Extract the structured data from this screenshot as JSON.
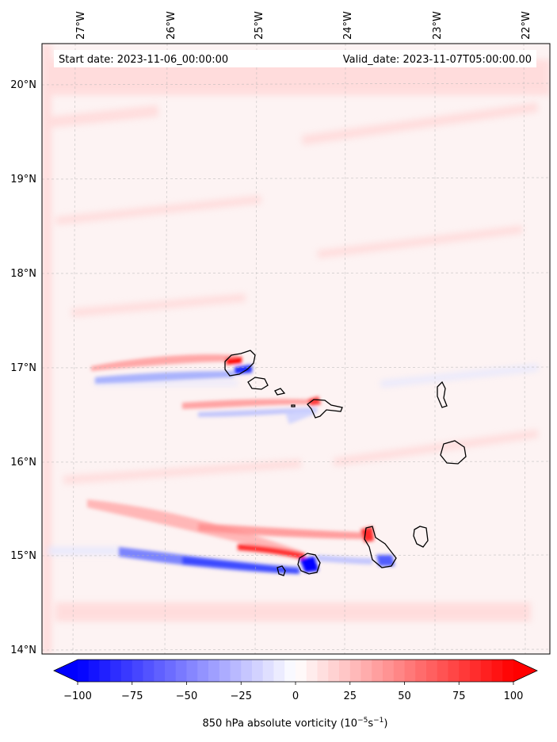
{
  "header": {
    "start_date": "Start date: 2023-11-06_00:00:00",
    "valid_date": "Valid_date: 2023-11-07T05:00:00.00"
  },
  "map": {
    "lon_ticks": [
      "27°W",
      "26°W",
      "25°W",
      "24°W",
      "23°W",
      "22°W"
    ],
    "lat_ticks": [
      "20°N",
      "19°N",
      "18°N",
      "17°N",
      "16°N",
      "15°N",
      "14°N"
    ],
    "gridlines": true
  },
  "colorbar": {
    "ticks": [
      "−100",
      "−75",
      "−50",
      "−25",
      "0",
      "25",
      "50",
      "75",
      "100"
    ],
    "min": -100,
    "max": 100,
    "colormap": "bwr",
    "extend": "both",
    "title_prefix": "850 hPa absolute vorticity (10",
    "title_exp1": "−5",
    "title_mid": "s",
    "title_exp2": "−1",
    "title_suffix": ")"
  },
  "colors": {
    "negative": "#0000ff",
    "zero": "#ffffff",
    "positive": "#ff0000",
    "coastline": "#000000"
  }
}
